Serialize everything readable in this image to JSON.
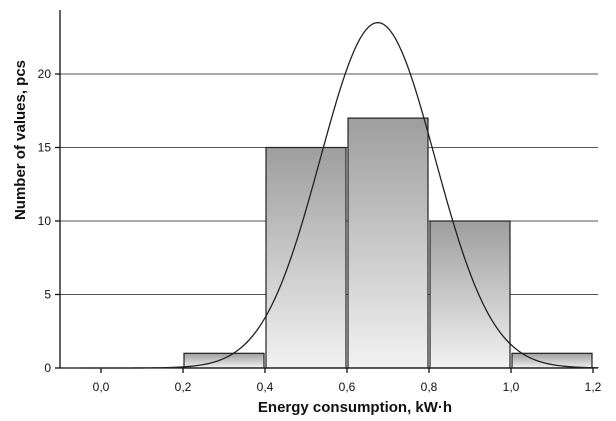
{
  "chart_data": {
    "type": "bar",
    "subtype": "histogram",
    "xlabel": "Energy consumption, kW·h",
    "ylabel": "Number of values, pcs",
    "x_ticks": [
      "0,0",
      "0,2",
      "0,4",
      "0,6",
      "0,8",
      "1,0",
      "1,2"
    ],
    "y_ticks": [
      "0",
      "5",
      "10",
      "15",
      "20"
    ],
    "xlim": [
      -0.1,
      1.25
    ],
    "ylim": [
      0,
      24
    ],
    "grid": "horizontal",
    "bins": [
      {
        "from": 0.2,
        "to": 0.4,
        "value": 1
      },
      {
        "from": 0.4,
        "to": 0.6,
        "value": 15
      },
      {
        "from": 0.6,
        "to": 0.8,
        "value": 17
      },
      {
        "from": 0.8,
        "to": 1.0,
        "value": 10
      },
      {
        "from": 1.0,
        "to": 1.2,
        "value": 1
      }
    ],
    "fitted_curve": {
      "type": "normal",
      "mean": 0.675,
      "std": 0.14,
      "peak": 23.5
    },
    "colors": {
      "bar_gradient_top": "#9e9e9e",
      "bar_gradient_bottom": "#f2f2f2",
      "outline": "#222222"
    }
  }
}
